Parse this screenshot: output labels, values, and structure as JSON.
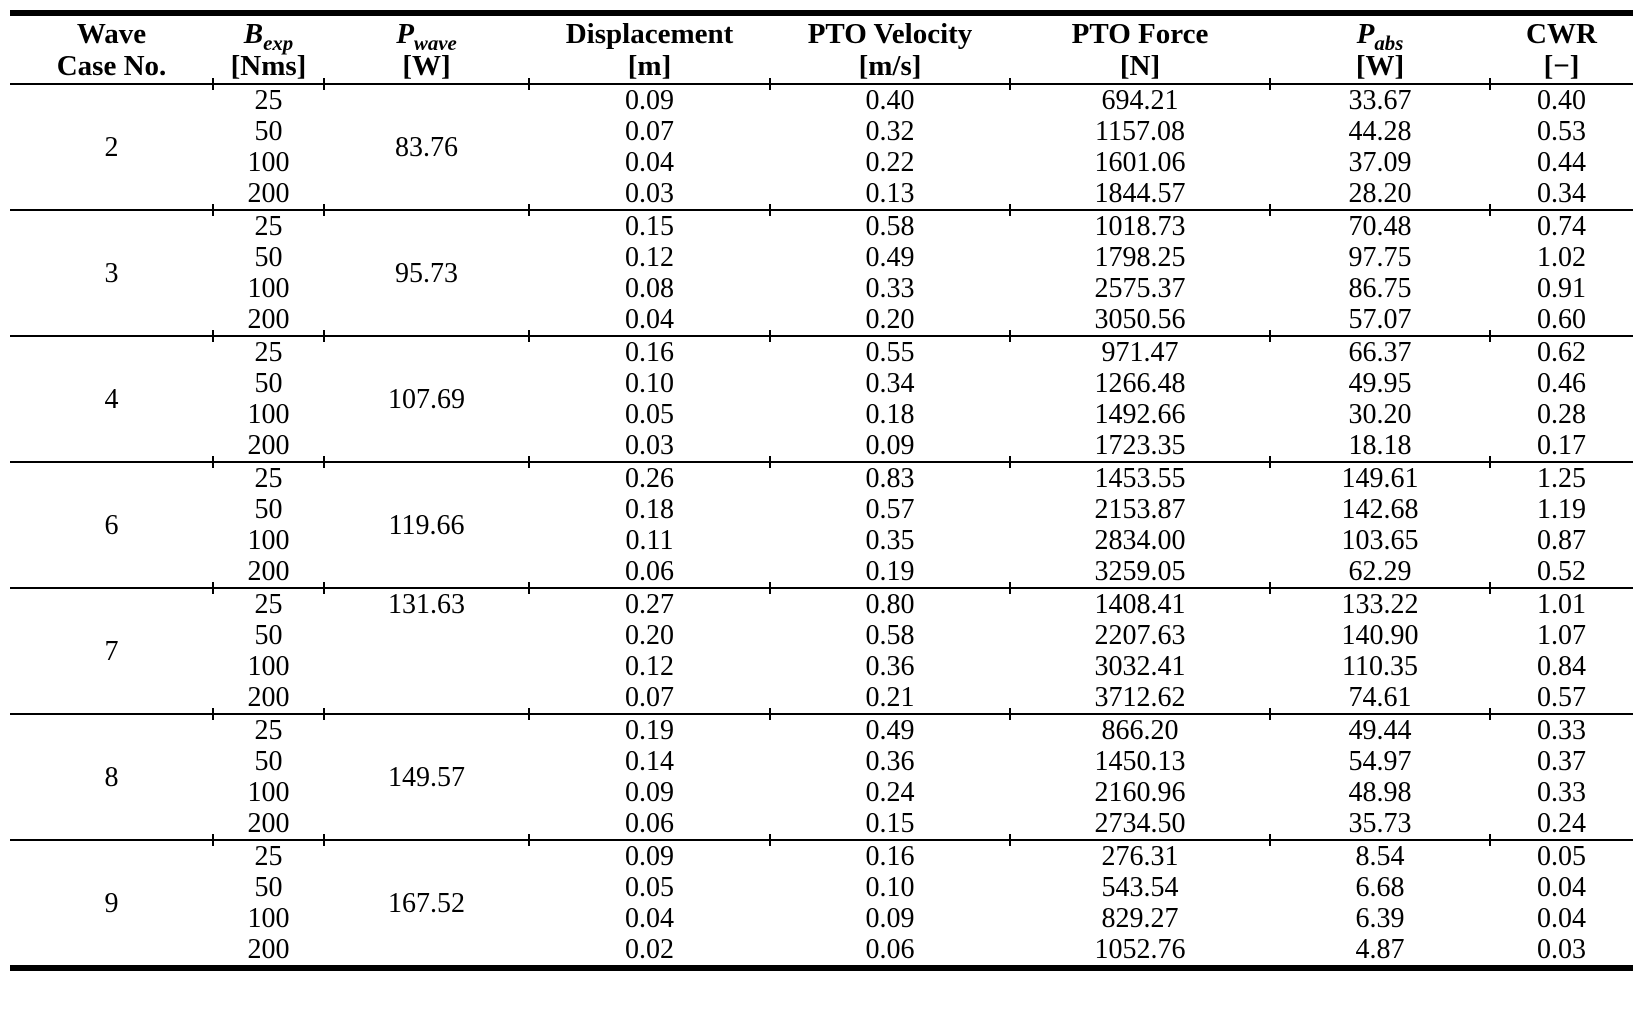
{
  "table": {
    "headers": {
      "wave_case": {
        "line1": "Wave",
        "line2": "Case No."
      },
      "b_exp": {
        "sym": "B",
        "sub": "exp",
        "unit": "[Nms]"
      },
      "p_wave": {
        "sym": "P",
        "sub": "wave",
        "unit": "[W]"
      },
      "displacement": {
        "label": "Displacement",
        "unit": "[m]"
      },
      "pto_velocity": {
        "label": "PTO Velocity",
        "unit": "[m/s]"
      },
      "pto_force": {
        "label": "PTO Force",
        "unit": "[N]"
      },
      "p_abs": {
        "sym": "P",
        "sub": "abs",
        "unit": "[W]"
      },
      "cwr": {
        "label": "CWR",
        "unit": "[−]"
      }
    },
    "groups": [
      {
        "case": "2",
        "p_wave": "83.76",
        "p_wave_valign": "middle",
        "rows": [
          {
            "b_exp": "25",
            "displacement": "0.09",
            "pto_velocity": "0.40",
            "pto_force": "694.21",
            "p_abs": "33.67",
            "cwr": "0.40"
          },
          {
            "b_exp": "50",
            "displacement": "0.07",
            "pto_velocity": "0.32",
            "pto_force": "1157.08",
            "p_abs": "44.28",
            "cwr": "0.53"
          },
          {
            "b_exp": "100",
            "displacement": "0.04",
            "pto_velocity": "0.22",
            "pto_force": "1601.06",
            "p_abs": "37.09",
            "cwr": "0.44"
          },
          {
            "b_exp": "200",
            "displacement": "0.03",
            "pto_velocity": "0.13",
            "pto_force": "1844.57",
            "p_abs": "28.20",
            "cwr": "0.34"
          }
        ]
      },
      {
        "case": "3",
        "p_wave": "95.73",
        "p_wave_valign": "middle",
        "rows": [
          {
            "b_exp": "25",
            "displacement": "0.15",
            "pto_velocity": "0.58",
            "pto_force": "1018.73",
            "p_abs": "70.48",
            "cwr": "0.74"
          },
          {
            "b_exp": "50",
            "displacement": "0.12",
            "pto_velocity": "0.49",
            "pto_force": "1798.25",
            "p_abs": "97.75",
            "cwr": "1.02"
          },
          {
            "b_exp": "100",
            "displacement": "0.08",
            "pto_velocity": "0.33",
            "pto_force": "2575.37",
            "p_abs": "86.75",
            "cwr": "0.91"
          },
          {
            "b_exp": "200",
            "displacement": "0.04",
            "pto_velocity": "0.20",
            "pto_force": "3050.56",
            "p_abs": "57.07",
            "cwr": "0.60"
          }
        ]
      },
      {
        "case": "4",
        "p_wave": "107.69",
        "p_wave_valign": "middle",
        "rows": [
          {
            "b_exp": "25",
            "displacement": "0.16",
            "pto_velocity": "0.55",
            "pto_force": "971.47",
            "p_abs": "66.37",
            "cwr": "0.62"
          },
          {
            "b_exp": "50",
            "displacement": "0.10",
            "pto_velocity": "0.34",
            "pto_force": "1266.48",
            "p_abs": "49.95",
            "cwr": "0.46"
          },
          {
            "b_exp": "100",
            "displacement": "0.05",
            "pto_velocity": "0.18",
            "pto_force": "1492.66",
            "p_abs": "30.20",
            "cwr": "0.28"
          },
          {
            "b_exp": "200",
            "displacement": "0.03",
            "pto_velocity": "0.09",
            "pto_force": "1723.35",
            "p_abs": "18.18",
            "cwr": "0.17"
          }
        ]
      },
      {
        "case": "6",
        "p_wave": "119.66",
        "p_wave_valign": "middle",
        "rows": [
          {
            "b_exp": "25",
            "displacement": "0.26",
            "pto_velocity": "0.83",
            "pto_force": "1453.55",
            "p_abs": "149.61",
            "cwr": "1.25"
          },
          {
            "b_exp": "50",
            "displacement": "0.18",
            "pto_velocity": "0.57",
            "pto_force": "2153.87",
            "p_abs": "142.68",
            "cwr": "1.19"
          },
          {
            "b_exp": "100",
            "displacement": "0.11",
            "pto_velocity": "0.35",
            "pto_force": "2834.00",
            "p_abs": "103.65",
            "cwr": "0.87"
          },
          {
            "b_exp": "200",
            "displacement": "0.06",
            "pto_velocity": "0.19",
            "pto_force": "3259.05",
            "p_abs": "62.29",
            "cwr": "0.52"
          }
        ]
      },
      {
        "case": "7",
        "p_wave": "131.63",
        "p_wave_valign": "top",
        "rows": [
          {
            "b_exp": "25",
            "displacement": "0.27",
            "pto_velocity": "0.80",
            "pto_force": "1408.41",
            "p_abs": "133.22",
            "cwr": "1.01"
          },
          {
            "b_exp": "50",
            "displacement": "0.20",
            "pto_velocity": "0.58",
            "pto_force": "2207.63",
            "p_abs": "140.90",
            "cwr": "1.07"
          },
          {
            "b_exp": "100",
            "displacement": "0.12",
            "pto_velocity": "0.36",
            "pto_force": "3032.41",
            "p_abs": "110.35",
            "cwr": "0.84"
          },
          {
            "b_exp": "200",
            "displacement": "0.07",
            "pto_velocity": "0.21",
            "pto_force": "3712.62",
            "p_abs": "74.61",
            "cwr": "0.57"
          }
        ]
      },
      {
        "case": "8",
        "p_wave": "149.57",
        "p_wave_valign": "middle",
        "rows": [
          {
            "b_exp": "25",
            "displacement": "0.19",
            "pto_velocity": "0.49",
            "pto_force": "866.20",
            "p_abs": "49.44",
            "cwr": "0.33"
          },
          {
            "b_exp": "50",
            "displacement": "0.14",
            "pto_velocity": "0.36",
            "pto_force": "1450.13",
            "p_abs": "54.97",
            "cwr": "0.37"
          },
          {
            "b_exp": "100",
            "displacement": "0.09",
            "pto_velocity": "0.24",
            "pto_force": "2160.96",
            "p_abs": "48.98",
            "cwr": "0.33"
          },
          {
            "b_exp": "200",
            "displacement": "0.06",
            "pto_velocity": "0.15",
            "pto_force": "2734.50",
            "p_abs": "35.73",
            "cwr": "0.24"
          }
        ]
      },
      {
        "case": "9",
        "p_wave": "167.52",
        "p_wave_valign": "middle",
        "rows": [
          {
            "b_exp": "25",
            "displacement": "0.09",
            "pto_velocity": "0.16",
            "pto_force": "276.31",
            "p_abs": "8.54",
            "cwr": "0.05"
          },
          {
            "b_exp": "50",
            "displacement": "0.05",
            "pto_velocity": "0.10",
            "pto_force": "543.54",
            "p_abs": "6.68",
            "cwr": "0.04"
          },
          {
            "b_exp": "100",
            "displacement": "0.04",
            "pto_velocity": "0.09",
            "pto_force": "829.27",
            "p_abs": "6.39",
            "cwr": "0.04"
          },
          {
            "b_exp": "200",
            "displacement": "0.02",
            "pto_velocity": "0.06",
            "pto_force": "1052.76",
            "p_abs": "4.87",
            "cwr": "0.03"
          }
        ]
      }
    ]
  }
}
